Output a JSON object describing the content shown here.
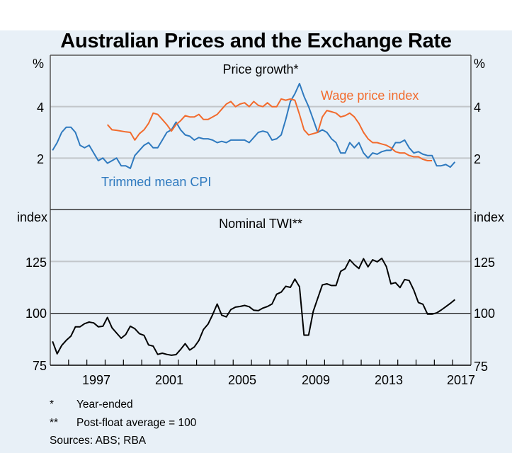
{
  "chart_data": [
    {
      "type": "line",
      "panel": "top",
      "title": "Price growth*",
      "ylabel_left": "%",
      "ylabel_right": "%",
      "ylim": [
        0,
        6
      ],
      "yticks": [
        2,
        4
      ],
      "xlim": [
        1995,
        2018
      ],
      "grid": true,
      "series": [
        {
          "name": "Trimmed mean CPI",
          "color": "#2f7abf",
          "label_position": "lower-left",
          "x_start": 1995.125,
          "x_step": 0.25,
          "values": [
            2.3,
            2.6,
            3.0,
            3.2,
            3.2,
            3.0,
            2.5,
            2.4,
            2.5,
            2.2,
            1.9,
            2.0,
            1.8,
            1.9,
            2.0,
            1.7,
            1.7,
            1.6,
            2.1,
            2.3,
            2.5,
            2.6,
            2.4,
            2.4,
            2.7,
            3.0,
            3.1,
            3.4,
            3.1,
            2.9,
            2.85,
            2.7,
            2.8,
            2.75,
            2.75,
            2.7,
            2.6,
            2.65,
            2.6,
            2.7,
            2.7,
            2.7,
            2.7,
            2.6,
            2.8,
            3.0,
            3.05,
            3.0,
            2.7,
            2.75,
            2.9,
            3.5,
            4.2,
            4.5,
            4.9,
            4.4,
            4.0,
            3.5,
            3.0,
            3.1,
            3.0,
            2.75,
            2.6,
            2.2,
            2.2,
            2.6,
            2.4,
            2.6,
            2.2,
            2.0,
            2.2,
            2.15,
            2.25,
            2.3,
            2.3,
            2.6,
            2.6,
            2.7,
            2.4,
            2.2,
            2.25,
            2.15,
            2.1,
            2.1,
            1.7,
            1.7,
            1.75,
            1.65,
            1.85
          ]
        },
        {
          "name": "Wage price index",
          "color": "#f26b2d",
          "label_position": "upper-right",
          "x_start": 1998.125,
          "x_step": 0.25,
          "values": [
            3.3,
            3.1,
            3.08,
            3.05,
            3.02,
            3.0,
            2.7,
            2.95,
            3.1,
            3.35,
            3.75,
            3.7,
            3.5,
            3.3,
            3.05,
            3.3,
            3.45,
            3.65,
            3.6,
            3.6,
            3.7,
            3.5,
            3.5,
            3.6,
            3.7,
            3.9,
            4.1,
            4.2,
            4.0,
            4.1,
            4.15,
            4.0,
            4.2,
            4.05,
            4.0,
            4.15,
            4.0,
            4.0,
            4.3,
            4.25,
            4.3,
            4.25,
            3.7,
            3.1,
            2.9,
            2.95,
            3.0,
            3.6,
            3.85,
            3.8,
            3.75,
            3.6,
            3.65,
            3.75,
            3.6,
            3.35,
            3.0,
            2.75,
            2.6,
            2.6,
            2.55,
            2.5,
            2.4,
            2.25,
            2.2,
            2.2,
            2.1,
            2.05,
            2.05,
            1.95,
            1.9,
            1.9
          ]
        }
      ]
    },
    {
      "type": "line",
      "panel": "bottom",
      "title": "Nominal TWI**",
      "ylabel_left": "index",
      "ylabel_right": "index",
      "ylim": [
        75,
        150
      ],
      "yticks": [
        75,
        100,
        125
      ],
      "reference_line": 100,
      "xlim": [
        1995,
        2018
      ],
      "xticks": [
        "1997",
        "2001",
        "2005",
        "2009",
        "2013",
        "2017"
      ],
      "grid": true,
      "series": [
        {
          "name": "Nominal TWI",
          "color": "#000000",
          "x_start": 1995.125,
          "x_step": 0.25,
          "values": [
            86.5,
            80.5,
            84.5,
            87,
            89,
            93.5,
            93.5,
            95,
            95.8,
            95.4,
            93.5,
            93.8,
            98,
            93,
            90.5,
            88,
            89.8,
            93.8,
            92.6,
            90.2,
            89.4,
            84.8,
            84.2,
            80.2,
            80.8,
            80.2,
            79.8,
            80.1,
            82.6,
            85.4,
            82.3,
            83.8,
            86.9,
            92.2,
            94.8,
            99.3,
            104.5,
            99.1,
            98.3,
            101.8,
            103,
            103.3,
            103.8,
            103.2,
            101.5,
            101.3,
            102.5,
            103.3,
            104.5,
            109.2,
            110.2,
            113,
            112.5,
            116.5,
            112.8,
            89.5,
            89.5,
            100.9,
            107.3,
            113.7,
            114.2,
            113.4,
            113.4,
            120.2,
            121.5,
            125.8,
            123.4,
            121.6,
            126.3,
            122.4,
            125.8,
            124.8,
            126.5,
            122.5,
            114.2,
            114.8,
            112.4,
            116.3,
            115.8,
            111.2,
            105.2,
            104.4,
            99.6,
            99.6,
            100.2,
            101.6,
            103.2,
            104.8,
            106.6
          ]
        }
      ]
    }
  ],
  "header": {
    "title": "Australian Prices and the Exchange Rate"
  },
  "axes": {
    "top_left_unit": "%",
    "top_right_unit": "%",
    "bottom_left_unit": "index",
    "bottom_right_unit": "index",
    "top_ticks": [
      "4",
      "2"
    ],
    "bottom_ticks": [
      "125",
      "100",
      "75"
    ],
    "x_labels": [
      "1997",
      "2001",
      "2005",
      "2009",
      "2013",
      "2017"
    ]
  },
  "panels": {
    "top_title": "Price growth*",
    "bottom_title": "Nominal TWI**",
    "cpi_label": "Trimmed mean CPI",
    "wpi_label": "Wage price index"
  },
  "footnotes": [
    {
      "mark": "*",
      "text": "Year-ended"
    },
    {
      "mark": "**",
      "text": "Post-float average = 100"
    }
  ],
  "sources": "Sources: ABS; RBA"
}
